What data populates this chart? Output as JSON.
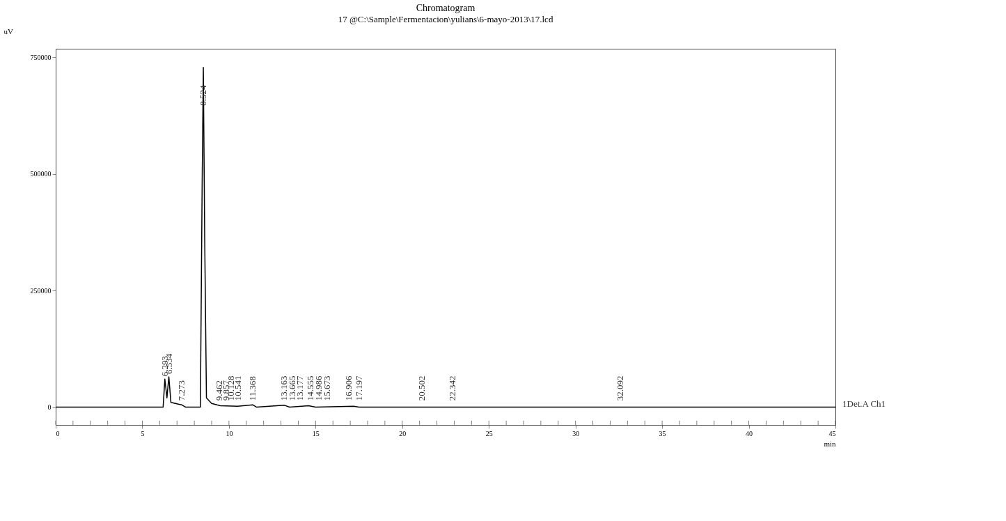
{
  "chart_data": {
    "type": "line",
    "title": "Chromatogram",
    "subtitle": "17 @C:\\Sample\\Fermentacion\\yulians\\6-mayo-2013\\17.lcd",
    "ylabel": "uV",
    "xlabel": "min",
    "x": [
      0,
      6.2,
      6.3,
      6.42,
      6.53,
      6.65,
      7.27,
      7.5,
      8.35,
      8.45,
      8.52,
      8.6,
      8.7,
      9.0,
      9.5,
      10.5,
      11.37,
      11.6,
      13.2,
      13.5,
      14.6,
      15.0,
      17.2,
      17.5,
      45
    ],
    "series": [
      {
        "color": "#000000",
        "values": [
          0,
          0,
          60000,
          20000,
          65000,
          10000,
          5000,
          0,
          0,
          470000,
          728000,
          360000,
          20000,
          8000,
          3000,
          2000,
          5000,
          0,
          4000,
          0,
          3000,
          0,
          2000,
          0,
          0
        ]
      }
    ],
    "xlim": [
      0,
      45
    ],
    "xticks": [
      0,
      5,
      10,
      15,
      20,
      25,
      30,
      35,
      40,
      45
    ],
    "ylim": [
      -38000,
      768000
    ],
    "yticks": [
      0,
      250000,
      500000,
      750000
    ],
    "grid": false,
    "marker": "none",
    "line_style": "solid",
    "annotations": [
      {
        "text": "6.293",
        "x": 6.3,
        "y": 60000
      },
      {
        "text": "6.534",
        "x": 6.534,
        "y": 65000
      },
      {
        "text": "7.273",
        "x": 7.273,
        "y": 8000
      },
      {
        "text": "8.524",
        "x": 8.524,
        "y": 640000
      },
      {
        "text": "9.462",
        "x": 9.462,
        "y": 8000
      },
      {
        "text": "9.857",
        "x": 9.857,
        "y": 8000
      },
      {
        "text": "10.128",
        "x": 10.128,
        "y": 8000
      },
      {
        "text": "10.541",
        "x": 10.541,
        "y": 8000
      },
      {
        "text": "11.368",
        "x": 11.368,
        "y": 8000
      },
      {
        "text": "13.163",
        "x": 13.163,
        "y": 8000
      },
      {
        "text": "13.665",
        "x": 13.665,
        "y": 8000
      },
      {
        "text": "13.177",
        "x": 14.1,
        "y": 8000
      },
      {
        "text": "14.555",
        "x": 14.7,
        "y": 8000
      },
      {
        "text": "14.986",
        "x": 15.2,
        "y": 8000
      },
      {
        "text": "15.673",
        "x": 15.673,
        "y": 8000
      },
      {
        "text": "16.906",
        "x": 16.906,
        "y": 8000
      },
      {
        "text": "17.197",
        "x": 17.5,
        "y": 8000
      },
      {
        "text": "20.502",
        "x": 21.15,
        "y": 8000
      },
      {
        "text": "22.342",
        "x": 22.9,
        "y": 8000
      },
      {
        "text": "32.092",
        "x": 32.6,
        "y": 8000
      },
      "1Det.A Ch1"
    ]
  }
}
